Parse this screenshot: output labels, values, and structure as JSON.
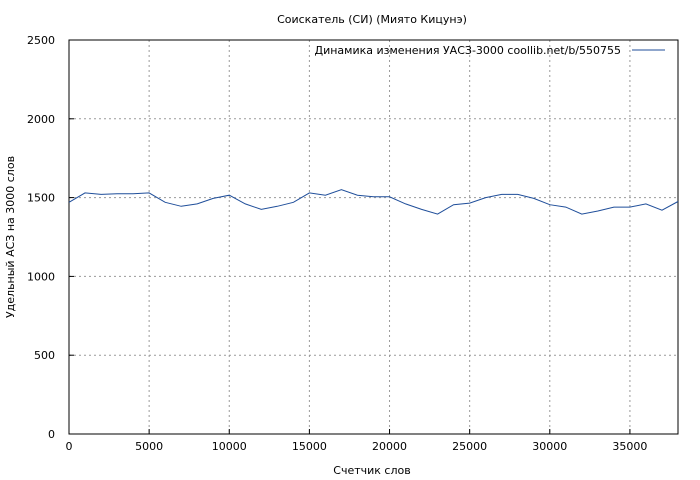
{
  "chart_data": {
    "type": "line",
    "title": "Соискатель (СИ) (Миято Кицунэ)",
    "xlabel": "Счетчик слов",
    "ylabel": "Удельный АСЗ на 3000 слов",
    "xlim": [
      0,
      38000
    ],
    "ylim": [
      0,
      2500
    ],
    "xticks": [
      0,
      5000,
      10000,
      15000,
      20000,
      25000,
      30000,
      35000
    ],
    "yticks": [
      0,
      500,
      1000,
      1500,
      2000,
      2500
    ],
    "grid": true,
    "legend_position": "top-right",
    "series": [
      {
        "name": "Динамика изменения УАСЗ-3000  coollib.net/b/550755",
        "color": "#1f4e9a",
        "x": [
          0,
          1000,
          2000,
          3000,
          4000,
          5000,
          6000,
          7000,
          8000,
          9000,
          10000,
          11000,
          12000,
          13000,
          14000,
          15000,
          16000,
          17000,
          18000,
          19000,
          20000,
          21000,
          22000,
          23000,
          24000,
          25000,
          26000,
          27000,
          28000,
          29000,
          30000,
          31000,
          32000,
          33000,
          34000,
          35000,
          36000,
          37000,
          38000
        ],
        "y": [
          1470,
          1530,
          1520,
          1525,
          1525,
          1530,
          1470,
          1445,
          1460,
          1495,
          1515,
          1460,
          1425,
          1445,
          1470,
          1530,
          1515,
          1550,
          1515,
          1505,
          1505,
          1460,
          1425,
          1395,
          1455,
          1465,
          1500,
          1520,
          1520,
          1495,
          1455,
          1440,
          1395,
          1415,
          1440,
          1440,
          1460,
          1420,
          1475
        ]
      }
    ]
  }
}
